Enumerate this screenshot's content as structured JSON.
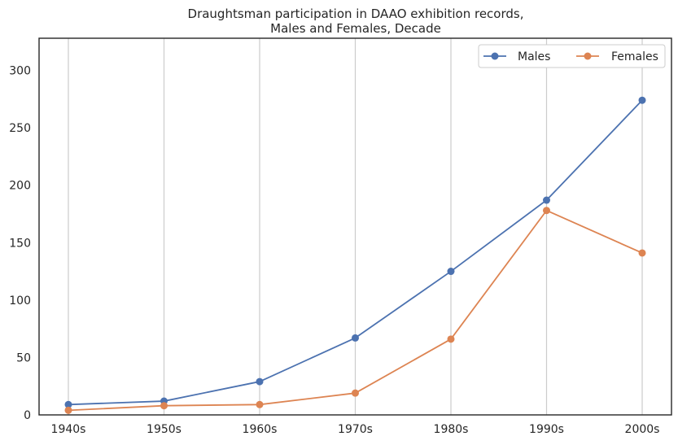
{
  "chart_data": {
    "type": "line",
    "title_line1": "Draughtsman participation in DAAO exhibition records,",
    "title_line2": "Males and Females, Decade",
    "xlabel": "",
    "ylabel": "",
    "categories": [
      "1940s",
      "1950s",
      "1960s",
      "1970s",
      "1980s",
      "1990s",
      "2000s"
    ],
    "yticks": [
      0,
      50,
      100,
      150,
      200,
      250,
      300
    ],
    "ylim": [
      0,
      328
    ],
    "grid": "vertical",
    "legend_position": "top-right",
    "series": [
      {
        "name": "Males",
        "color": "#4c72b0",
        "values": [
          9,
          12,
          29,
          67,
          125,
          187,
          274
        ]
      },
      {
        "name": "Females",
        "color": "#dd8452",
        "values": [
          4,
          8,
          9,
          19,
          66,
          178,
          141
        ]
      }
    ]
  }
}
